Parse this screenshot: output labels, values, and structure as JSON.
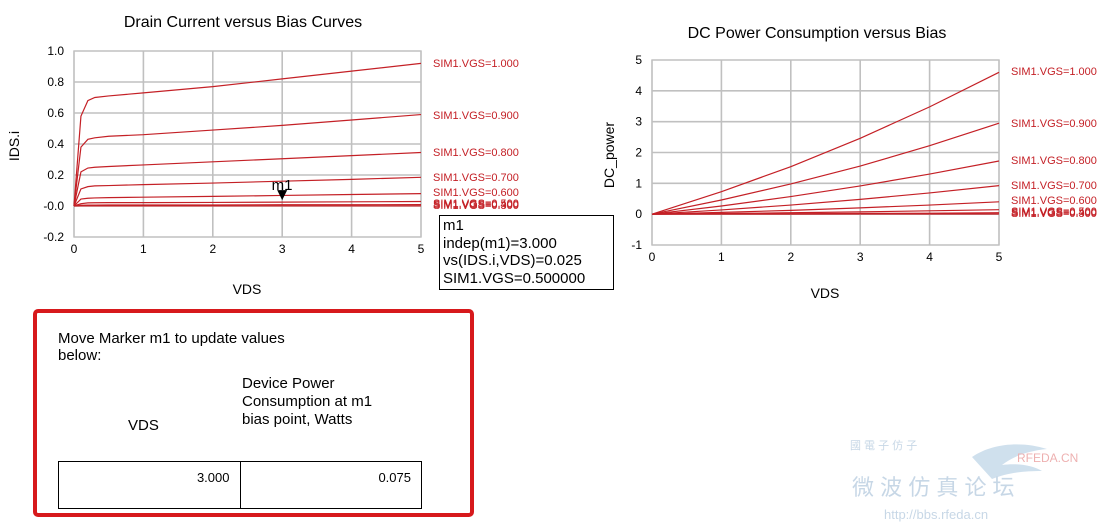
{
  "chart_data": [
    {
      "type": "line",
      "title": "Drain Current versus Bias Curves",
      "xlabel": "VDS",
      "ylabel": "IDS.i",
      "xlim": [
        0,
        5
      ],
      "ylim": [
        -0.2,
        1.0
      ],
      "xticks": [
        0,
        1,
        2,
        3,
        4,
        5
      ],
      "yticks": [
        -0.2,
        0.0,
        0.2,
        0.4,
        0.6,
        0.8,
        1.0
      ],
      "xtick_labels": [
        "0",
        "1",
        "2",
        "3",
        "4",
        "5"
      ],
      "ytick_labels": [
        "-0.2",
        "-0.0",
        "0.2",
        "0.4",
        "0.6",
        "0.8",
        "1.0"
      ],
      "grid": true,
      "x": [
        0,
        0.1,
        0.2,
        0.3,
        0.5,
        1,
        2,
        3,
        4,
        5
      ],
      "series": [
        {
          "name": "SIM1.VGS=1.000",
          "values": [
            0,
            0.58,
            0.68,
            0.7,
            0.71,
            0.73,
            0.77,
            0.82,
            0.87,
            0.92
          ]
        },
        {
          "name": "SIM1.VGS=0.900",
          "values": [
            0,
            0.38,
            0.43,
            0.44,
            0.45,
            0.46,
            0.49,
            0.52,
            0.555,
            0.59
          ]
        },
        {
          "name": "SIM1.VGS=0.800",
          "values": [
            0,
            0.22,
            0.245,
            0.25,
            0.255,
            0.265,
            0.285,
            0.305,
            0.325,
            0.345
          ]
        },
        {
          "name": "SIM1.VGS=0.700",
          "values": [
            0,
            0.11,
            0.125,
            0.13,
            0.132,
            0.138,
            0.148,
            0.16,
            0.172,
            0.185
          ]
        },
        {
          "name": "SIM1.VGS=0.600",
          "values": [
            0,
            0.045,
            0.05,
            0.052,
            0.054,
            0.057,
            0.062,
            0.068,
            0.074,
            0.08
          ]
        },
        {
          "name": "SIM1.VGS=0.500",
          "values": [
            0,
            0.015,
            0.02,
            0.021,
            0.022,
            0.022,
            0.023,
            0.025,
            0.027,
            0.029
          ]
        },
        {
          "name": "SIM1.VGS=0.400",
          "values": [
            0,
            0.005,
            0.006,
            0.006,
            0.007,
            0.007,
            0.007,
            0.008,
            0.008,
            0.009
          ]
        },
        {
          "name": "SIM1.VGS=0.300",
          "values": [
            0,
            0.001,
            0.001,
            0.001,
            0.001,
            0.001,
            0.001,
            0.001,
            0.001,
            0.001
          ]
        }
      ],
      "marker": {
        "name": "m1",
        "x": 3.0,
        "y": 0.025
      }
    },
    {
      "type": "line",
      "title": "DC Power Consumption versus Bias",
      "xlabel": "VDS",
      "ylabel": "DC_power",
      "xlim": [
        0,
        5
      ],
      "ylim": [
        -1,
        5
      ],
      "xticks": [
        0,
        1,
        2,
        3,
        4,
        5
      ],
      "yticks": [
        -1,
        0,
        1,
        2,
        3,
        4,
        5
      ],
      "xtick_labels": [
        "0",
        "1",
        "2",
        "3",
        "4",
        "5"
      ],
      "ytick_labels": [
        "-1",
        "0",
        "1",
        "2",
        "3",
        "4",
        "5"
      ],
      "grid": true,
      "x": [
        0,
        1,
        2,
        3,
        4,
        5
      ],
      "series": [
        {
          "name": "SIM1.VGS=1.000",
          "values": [
            0,
            0.73,
            1.54,
            2.46,
            3.48,
            4.6
          ]
        },
        {
          "name": "SIM1.VGS=0.900",
          "values": [
            0,
            0.46,
            0.98,
            1.56,
            2.22,
            2.95
          ]
        },
        {
          "name": "SIM1.VGS=0.800",
          "values": [
            0,
            0.265,
            0.57,
            0.915,
            1.3,
            1.725
          ]
        },
        {
          "name": "SIM1.VGS=0.700",
          "values": [
            0,
            0.138,
            0.296,
            0.48,
            0.688,
            0.925
          ]
        },
        {
          "name": "SIM1.VGS=0.600",
          "values": [
            0,
            0.057,
            0.124,
            0.204,
            0.296,
            0.4
          ]
        },
        {
          "name": "SIM1.VGS=0.500",
          "values": [
            0,
            0.022,
            0.046,
            0.075,
            0.108,
            0.145
          ]
        },
        {
          "name": "SIM1.VGS=0.400",
          "values": [
            0,
            0.007,
            0.014,
            0.024,
            0.032,
            0.045
          ]
        },
        {
          "name": "SIM1.VGS=0.300",
          "values": [
            0,
            0.001,
            0.002,
            0.003,
            0.004,
            0.005
          ]
        }
      ]
    }
  ],
  "colors": {
    "curve": "#c42026",
    "grid": "#c0c0c0",
    "axis_label": "#c42026",
    "panel_border": "#d7191c"
  },
  "marker_readout": {
    "name": "m1",
    "indep": "indep(m1)=3.000",
    "value": "vs(IDS.i,VDS)=0.025",
    "bias": "SIM1.VGS=0.500000"
  },
  "panel": {
    "instruction": "Move Marker m1 to update values below:",
    "col_vds_header": "VDS",
    "col_power_header": "Device Power Consumption at m1 bias point, Watts",
    "vds_value": "3.000",
    "power_value": "0.075"
  },
  "watermark": {
    "line1": "國 電 子 仿 子",
    "brand": "RFEDA.CN",
    "cn_text": "微 波 仿 真 论 坛",
    "url": "http://bbs.rfeda.cn"
  }
}
